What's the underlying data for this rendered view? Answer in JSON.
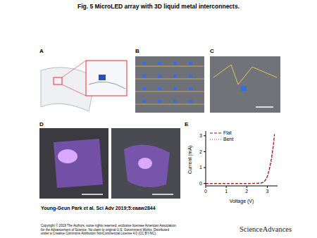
{
  "title": "Fig. 5 MicroLED array with 3D liquid metal interconnects.",
  "panel_labels": [
    "A",
    "B",
    "C",
    "D",
    "E"
  ],
  "chart_data": {
    "type": "line",
    "x": [
      0,
      0.5,
      1,
      1.5,
      2,
      2.5,
      2.7,
      2.8,
      2.9,
      3.0,
      3.1,
      3.2,
      3.3,
      3.35
    ],
    "series": [
      {
        "name": "Flat",
        "color": "#7a1c1c",
        "line_style": "dashed",
        "values": [
          0,
          0,
          0,
          0,
          0,
          0.01,
          0.03,
          0.08,
          0.2,
          0.45,
          0.9,
          1.55,
          2.45,
          3.1
        ]
      },
      {
        "name": "Bent",
        "color": "#d62728",
        "line_style": "dotted",
        "values": [
          0,
          0,
          0,
          0,
          0,
          0.01,
          0.02,
          0.06,
          0.16,
          0.38,
          0.8,
          1.4,
          2.3,
          2.95
        ]
      }
    ],
    "x_label": "Voltage (V)",
    "y_label": "Current (mA)",
    "xlim": [
      0,
      3.5
    ],
    "xticks": [
      0,
      1,
      2,
      3
    ],
    "ylim": [
      -0.15,
      3.3
    ],
    "yticks": [
      0,
      1,
      2,
      3
    ],
    "legend": "upper left"
  },
  "citation": "Young-Geun Park et al. Sci Adv 2019;5:eaaw2844",
  "copyright": [
    "Copyright © 2019 The Authors, some rights reserved; exclusive licensee American Association",
    "for the Advancement of Science. No claim to original U.S. Government Works. Distributed",
    "under a Creative Commons Attribution NonCommercial License 4.0 (CC BY-NC)."
  ],
  "logo": "ScienceAdvances"
}
